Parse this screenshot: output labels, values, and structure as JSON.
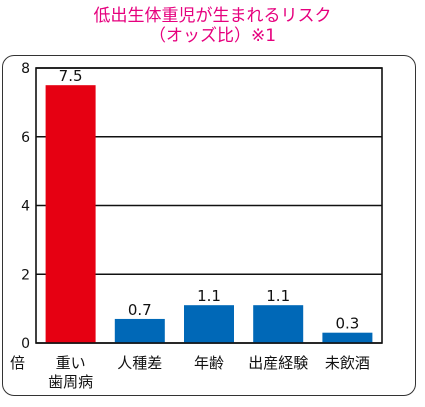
{
  "title_line1": "低出生体重児が生まれるリスク",
  "title_line2": "（オッズ比）※1",
  "unit_label": "倍",
  "colors": {
    "title": "#e6007e",
    "highlight": "#e60012",
    "bar": "#0068b7"
  },
  "chart_data": {
    "type": "bar",
    "categories": [
      "重い\n歯周病",
      "人種差",
      "年齢",
      "出産経験",
      "未飲酒"
    ],
    "values": [
      7.5,
      0.7,
      1.1,
      1.1,
      0.3
    ],
    "value_labels": [
      "7.5",
      "0.7",
      "1.1",
      "1.1",
      "0.3"
    ],
    "highlight_index": 0,
    "ylim": [
      0,
      8
    ],
    "yticks": [
      0,
      2,
      4,
      6,
      8
    ],
    "grid": true
  }
}
